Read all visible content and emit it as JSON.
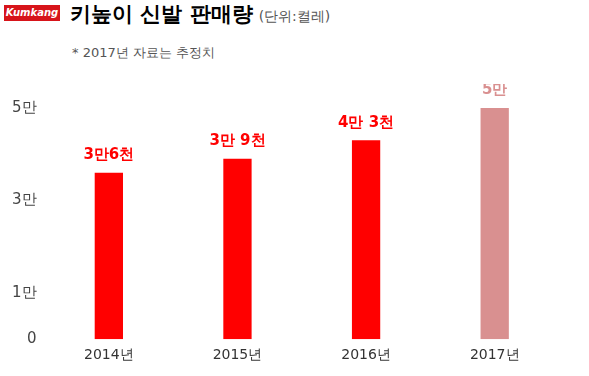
{
  "logo": "Kumkang",
  "chart_data": {
    "type": "bar",
    "title": "키높이 신발 판매량",
    "subtitle": "(단위:켤레)",
    "annotations": [
      "* 2017년 자료는 추정치"
    ],
    "categories": [
      "2014년",
      "2015년",
      "2016년",
      "2017년"
    ],
    "values": [
      36000,
      39000,
      43000,
      50000
    ],
    "value_labels": [
      "3만6천",
      "3만 9천",
      "4만 3천",
      "5만"
    ],
    "colors": [
      "#ff0000",
      "#ff0000",
      "#ff0000",
      "#d99090"
    ],
    "ylim": [
      0,
      50000
    ],
    "yticks": [
      0,
      {
        "value": 10000,
        "label": "1만"
      },
      {
        "value": 30000,
        "label": "3만"
      },
      {
        "value": 50000,
        "label": "5만"
      }
    ],
    "grid": false,
    "data_labels": true
  }
}
